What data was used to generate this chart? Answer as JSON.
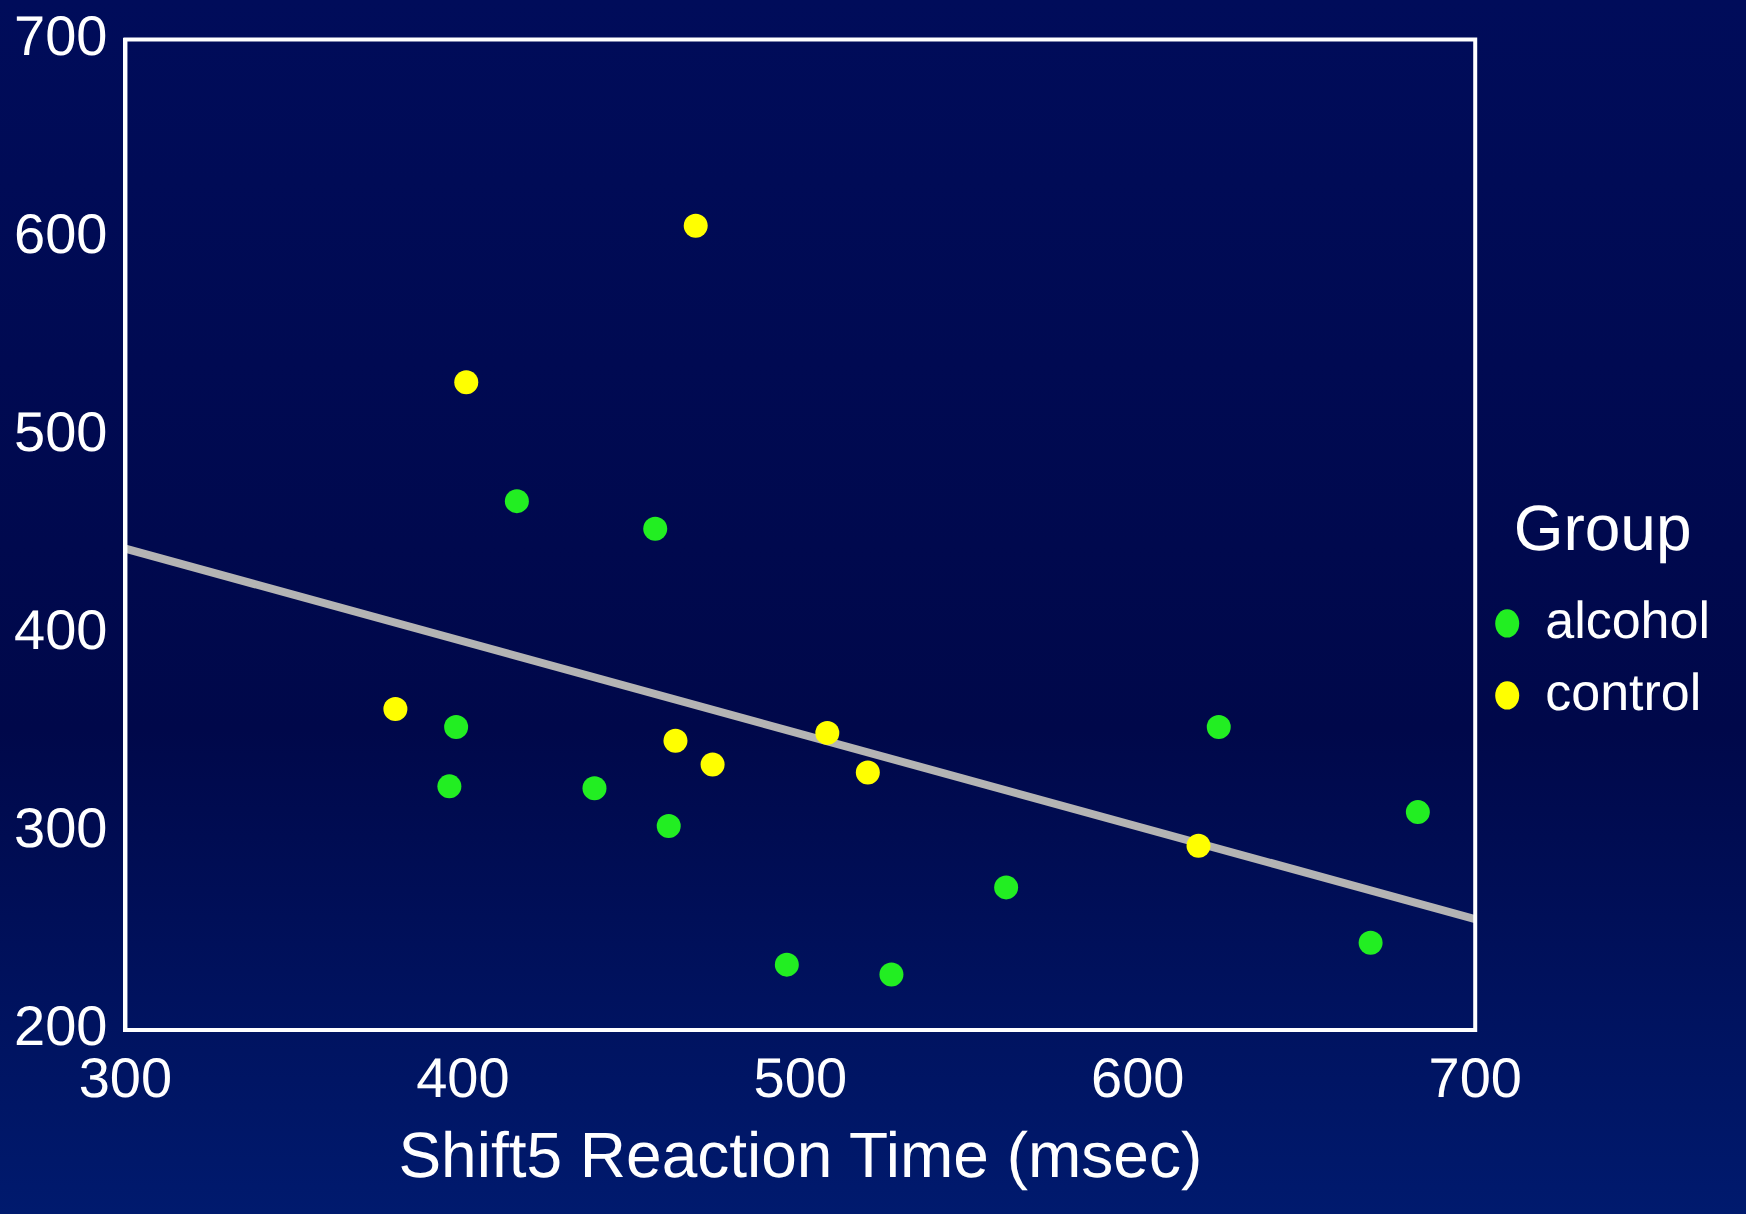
{
  "chart_data": {
    "type": "scatter",
    "xlabel": "Shift5 Reaction Time (msec)",
    "legend_title": "Group",
    "legend": "right",
    "grid": false,
    "marker": "circle",
    "xlim": [
      300,
      700
    ],
    "xticks": [
      300,
      400,
      500,
      600,
      700
    ],
    "ylim": [
      200,
      700
    ],
    "yticks": [
      200,
      300,
      400,
      500,
      600,
      700
    ],
    "series": [
      {
        "name": "alcohol",
        "color": "#22ee22",
        "x": [
          416,
          457,
          398,
          396,
          439,
          461,
          496,
          527,
          561,
          624,
          669,
          683
        ],
        "values": [
          467,
          453,
          353,
          323,
          322,
          303,
          233,
          228,
          272,
          353,
          244,
          310
        ]
      },
      {
        "name": "control",
        "color": "#ffff00",
        "x": [
          469,
          401,
          380,
          463,
          474,
          508,
          520,
          618
        ],
        "values": [
          606,
          527,
          362,
          346,
          334,
          350,
          330,
          293
        ]
      },
      {
        "type": "line",
        "color": "#b4b4b4",
        "x": [
          300,
          700
        ],
        "values": [
          443,
          256
        ],
        "marker": "none"
      }
    ]
  }
}
